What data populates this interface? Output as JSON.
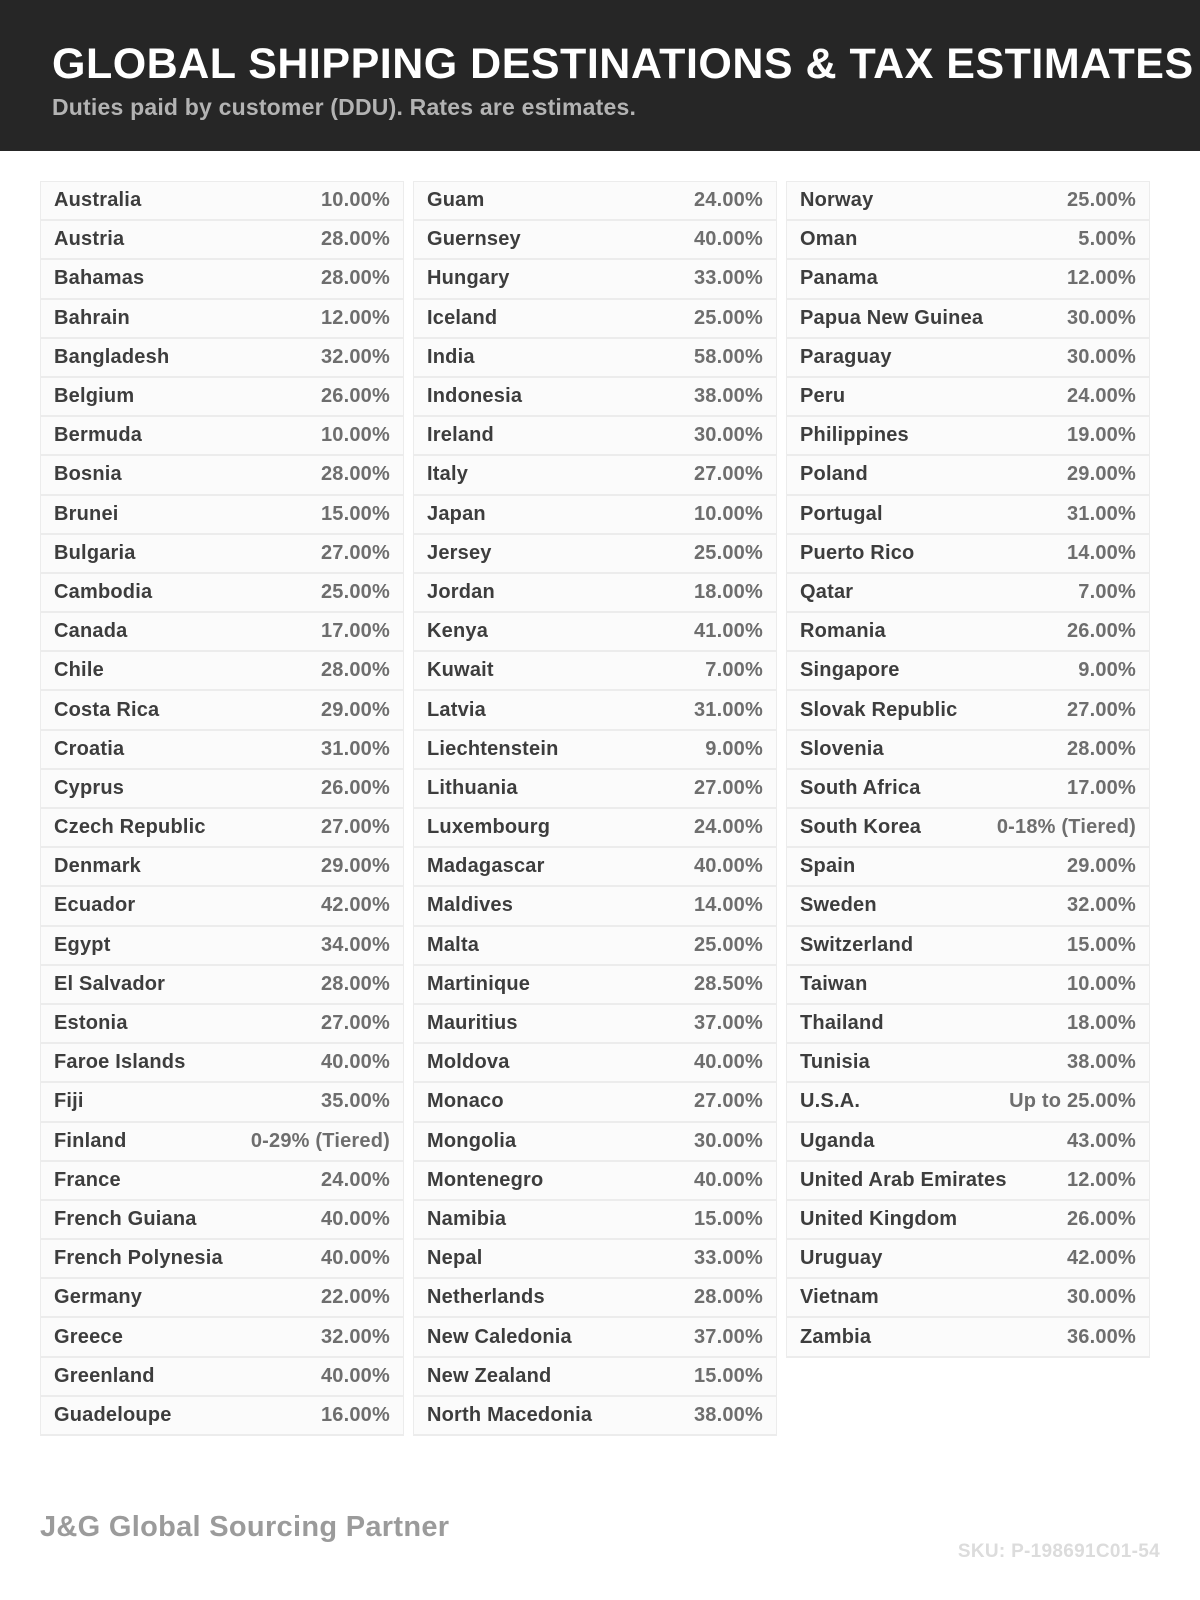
{
  "header": {
    "title": "GLOBAL SHIPPING DESTINATIONS & TAX ESTIMATES",
    "subtitle": "Duties paid by customer (DDU). Rates are estimates."
  },
  "table": {
    "columns": [
      [
        {
          "country": "Australia",
          "rate": "10.00%"
        },
        {
          "country": "Austria",
          "rate": "28.00%"
        },
        {
          "country": "Bahamas",
          "rate": "28.00%"
        },
        {
          "country": "Bahrain",
          "rate": "12.00%"
        },
        {
          "country": "Bangladesh",
          "rate": "32.00%"
        },
        {
          "country": "Belgium",
          "rate": "26.00%"
        },
        {
          "country": "Bermuda",
          "rate": "10.00%"
        },
        {
          "country": "Bosnia",
          "rate": "28.00%"
        },
        {
          "country": "Brunei",
          "rate": "15.00%"
        },
        {
          "country": "Bulgaria",
          "rate": "27.00%"
        },
        {
          "country": "Cambodia",
          "rate": "25.00%"
        },
        {
          "country": "Canada",
          "rate": "17.00%"
        },
        {
          "country": "Chile",
          "rate": "28.00%"
        },
        {
          "country": "Costa Rica",
          "rate": "29.00%"
        },
        {
          "country": "Croatia",
          "rate": "31.00%"
        },
        {
          "country": "Cyprus",
          "rate": "26.00%"
        },
        {
          "country": "Czech Republic",
          "rate": "27.00%"
        },
        {
          "country": "Denmark",
          "rate": "29.00%"
        },
        {
          "country": "Ecuador",
          "rate": "42.00%"
        },
        {
          "country": "Egypt",
          "rate": "34.00%"
        },
        {
          "country": "El Salvador",
          "rate": "28.00%"
        },
        {
          "country": "Estonia",
          "rate": "27.00%"
        },
        {
          "country": "Faroe Islands",
          "rate": "40.00%"
        },
        {
          "country": "Fiji",
          "rate": "35.00%"
        },
        {
          "country": "Finland",
          "rate": "0-29% (Tiered)"
        },
        {
          "country": "France",
          "rate": "24.00%"
        },
        {
          "country": "French Guiana",
          "rate": "40.00%"
        },
        {
          "country": "French Polynesia",
          "rate": "40.00%"
        },
        {
          "country": "Germany",
          "rate": "22.00%"
        },
        {
          "country": "Greece",
          "rate": "32.00%"
        },
        {
          "country": "Greenland",
          "rate": "40.00%"
        },
        {
          "country": "Guadeloupe",
          "rate": "16.00%"
        }
      ],
      [
        {
          "country": "Guam",
          "rate": "24.00%"
        },
        {
          "country": "Guernsey",
          "rate": "40.00%"
        },
        {
          "country": "Hungary",
          "rate": "33.00%"
        },
        {
          "country": "Iceland",
          "rate": "25.00%"
        },
        {
          "country": "India",
          "rate": "58.00%"
        },
        {
          "country": "Indonesia",
          "rate": "38.00%"
        },
        {
          "country": "Ireland",
          "rate": "30.00%"
        },
        {
          "country": "Italy",
          "rate": "27.00%"
        },
        {
          "country": "Japan",
          "rate": "10.00%"
        },
        {
          "country": "Jersey",
          "rate": "25.00%"
        },
        {
          "country": "Jordan",
          "rate": "18.00%"
        },
        {
          "country": "Kenya",
          "rate": "41.00%"
        },
        {
          "country": "Kuwait",
          "rate": "7.00%"
        },
        {
          "country": "Latvia",
          "rate": "31.00%"
        },
        {
          "country": "Liechtenstein",
          "rate": "9.00%"
        },
        {
          "country": "Lithuania",
          "rate": "27.00%"
        },
        {
          "country": "Luxembourg",
          "rate": "24.00%"
        },
        {
          "country": "Madagascar",
          "rate": "40.00%"
        },
        {
          "country": "Maldives",
          "rate": "14.00%"
        },
        {
          "country": "Malta",
          "rate": "25.00%"
        },
        {
          "country": "Martinique",
          "rate": "28.50%"
        },
        {
          "country": "Mauritius",
          "rate": "37.00%"
        },
        {
          "country": "Moldova",
          "rate": "40.00%"
        },
        {
          "country": "Monaco",
          "rate": "27.00%"
        },
        {
          "country": "Mongolia",
          "rate": "30.00%"
        },
        {
          "country": "Montenegro",
          "rate": "40.00%"
        },
        {
          "country": "Namibia",
          "rate": "15.00%"
        },
        {
          "country": "Nepal",
          "rate": "33.00%"
        },
        {
          "country": "Netherlands",
          "rate": "28.00%"
        },
        {
          "country": "New Caledonia",
          "rate": "37.00%"
        },
        {
          "country": "New Zealand",
          "rate": "15.00%"
        },
        {
          "country": "North Macedonia",
          "rate": "38.00%"
        }
      ],
      [
        {
          "country": "Norway",
          "rate": "25.00%"
        },
        {
          "country": "Oman",
          "rate": "5.00%"
        },
        {
          "country": "Panama",
          "rate": "12.00%"
        },
        {
          "country": "Papua New Guinea",
          "rate": "30.00%"
        },
        {
          "country": "Paraguay",
          "rate": "30.00%"
        },
        {
          "country": "Peru",
          "rate": "24.00%"
        },
        {
          "country": "Philippines",
          "rate": "19.00%"
        },
        {
          "country": "Poland",
          "rate": "29.00%"
        },
        {
          "country": "Portugal",
          "rate": "31.00%"
        },
        {
          "country": "Puerto Rico",
          "rate": "14.00%"
        },
        {
          "country": "Qatar",
          "rate": "7.00%"
        },
        {
          "country": "Romania",
          "rate": "26.00%"
        },
        {
          "country": "Singapore",
          "rate": "9.00%"
        },
        {
          "country": "Slovak Republic",
          "rate": "27.00%"
        },
        {
          "country": "Slovenia",
          "rate": "28.00%"
        },
        {
          "country": "South Africa",
          "rate": "17.00%"
        },
        {
          "country": "South Korea",
          "rate": "0-18% (Tiered)"
        },
        {
          "country": "Spain",
          "rate": "29.00%"
        },
        {
          "country": "Sweden",
          "rate": "32.00%"
        },
        {
          "country": "Switzerland",
          "rate": "15.00%"
        },
        {
          "country": "Taiwan",
          "rate": "10.00%"
        },
        {
          "country": "Thailand",
          "rate": "18.00%"
        },
        {
          "country": "Tunisia",
          "rate": "38.00%"
        },
        {
          "country": "U.S.A.",
          "rate": "Up to 25.00%"
        },
        {
          "country": "Uganda",
          "rate": "43.00%"
        },
        {
          "country": "United Arab Emirates",
          "rate": "12.00%"
        },
        {
          "country": "United Kingdom",
          "rate": "26.00%"
        },
        {
          "country": "Uruguay",
          "rate": "42.00%"
        },
        {
          "country": "Vietnam",
          "rate": "30.00%"
        },
        {
          "country": "Zambia",
          "rate": "36.00%"
        }
      ]
    ]
  },
  "footer": {
    "brand": "J&G Global Sourcing Partner",
    "sku": "SKU: P-198691C01-54"
  },
  "colors": {
    "header_bg": "#262626",
    "title_text": "#ffffff",
    "subtitle_text": "#b3b3b3",
    "row_bg": "#fbfbfb",
    "row_border": "#ececec",
    "country_text": "#3d3d3d",
    "rate_text": "#6e6e6e",
    "brand_text": "#9b9b9b",
    "sku_text": "#dcdcdc"
  }
}
